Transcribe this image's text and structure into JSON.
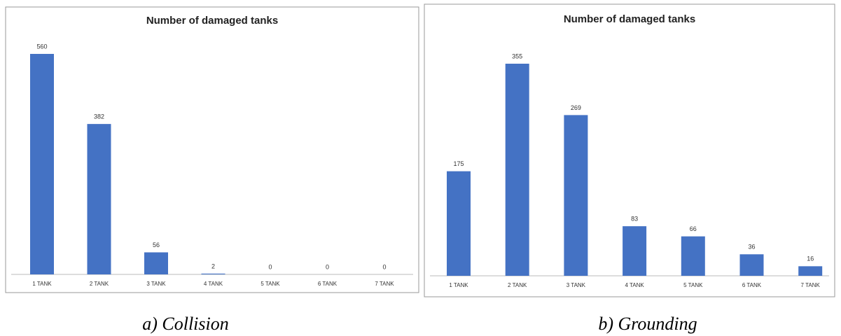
{
  "chart_data": [
    {
      "type": "bar",
      "title": "Number of damaged tanks",
      "caption": "a) Collision",
      "categories": [
        "1 TANK",
        "2 TANK",
        "3 TANK",
        "4 TANK",
        "5 TANK",
        "6 TANK",
        "7 TANK"
      ],
      "values": [
        560,
        382,
        56,
        2,
        0,
        0,
        0
      ],
      "color": "#4472c4"
    },
    {
      "type": "bar",
      "title": "Number of damaged tanks",
      "caption": "b) Grounding",
      "categories": [
        "1 TANK",
        "2 TANK",
        "3 TANK",
        "4 TANK",
        "5 TANK",
        "6 TANK",
        "7 TANK"
      ],
      "values": [
        175,
        355,
        269,
        83,
        66,
        36,
        16
      ],
      "color": "#4472c4"
    }
  ]
}
